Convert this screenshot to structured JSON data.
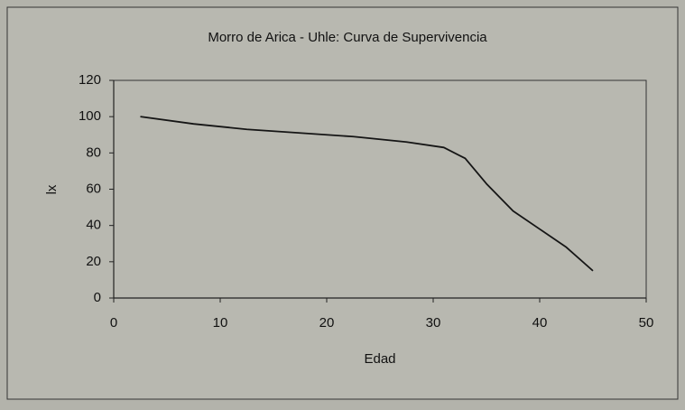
{
  "chart_data": {
    "type": "line",
    "title": "Morro de Arica - Uhle: Curva de Supervivencia",
    "x_label": "Edad",
    "y_label": "lx",
    "x": [
      2.5,
      7.5,
      12.5,
      17.5,
      22.5,
      27.5,
      31,
      33,
      35,
      37.5,
      40,
      42.5,
      45
    ],
    "values": [
      100,
      96,
      93,
      91,
      89,
      86,
      83,
      77,
      63,
      48,
      38,
      28,
      15
    ],
    "color": "#151515",
    "xlim": [
      0,
      50
    ],
    "xticks": [
      0,
      10,
      20,
      30,
      40,
      50
    ],
    "ylim": [
      0,
      120
    ],
    "yticks": [
      0,
      20,
      40,
      60,
      80,
      100,
      120
    ]
  }
}
